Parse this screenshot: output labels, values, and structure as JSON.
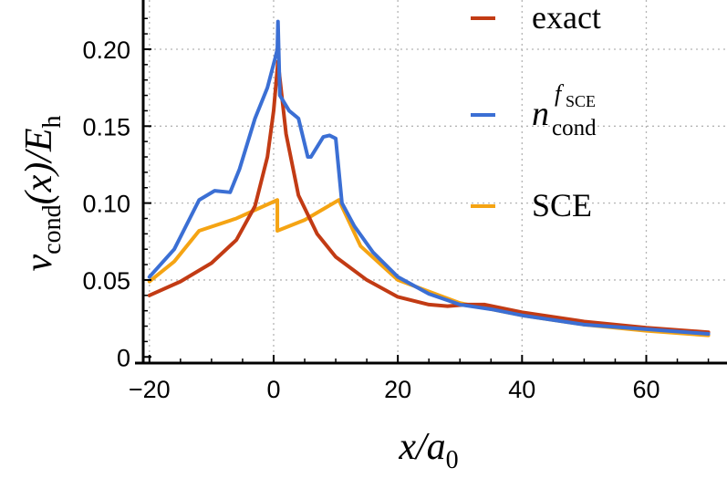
{
  "chart_data": {
    "type": "line",
    "xlabel": "x/a0",
    "ylabel": "v_cond(x)/E_h",
    "xlim": [
      -21,
      73
    ],
    "ylim": [
      -0.004,
      0.232
    ],
    "grid": true,
    "x_ticks": [
      -20,
      0,
      20,
      40,
      60
    ],
    "x_tick_labels": [
      "−20",
      "0",
      "20",
      "40",
      "60"
    ],
    "y_ticks": [
      0,
      0.05,
      0.1,
      0.15,
      0.2
    ],
    "y_tick_labels": [
      "0",
      "0.05",
      "0.10",
      "0.15",
      "0.20"
    ],
    "legend_position": "top-right",
    "series": [
      {
        "name": "exact",
        "color": "#c23b14",
        "x": [
          -20,
          -15,
          -10,
          -6,
          -3,
          -1,
          0,
          0.7,
          2,
          4,
          7,
          10,
          15,
          20,
          25,
          28,
          31,
          34,
          40,
          50,
          60,
          70
        ],
        "y": [
          0.04,
          0.049,
          0.061,
          0.076,
          0.098,
          0.13,
          0.16,
          0.192,
          0.145,
          0.105,
          0.08,
          0.065,
          0.05,
          0.039,
          0.034,
          0.033,
          0.034,
          0.034,
          0.029,
          0.023,
          0.019,
          0.016
        ]
      },
      {
        "name": "n_cond^{f_SCE}",
        "color": "#3b6fd4",
        "x": [
          -20,
          -16,
          -12,
          -9.5,
          -7,
          -5.5,
          -3,
          -1,
          0.3,
          0.6,
          0.7,
          1,
          2.5,
          4,
          5.5,
          6,
          8,
          9,
          10,
          11,
          13,
          16,
          20,
          25,
          30,
          35,
          40,
          50,
          60,
          70
        ],
        "y": [
          0.052,
          0.07,
          0.102,
          0.108,
          0.107,
          0.122,
          0.155,
          0.175,
          0.195,
          0.2,
          0.218,
          0.17,
          0.16,
          0.155,
          0.13,
          0.13,
          0.143,
          0.144,
          0.142,
          0.1,
          0.085,
          0.068,
          0.052,
          0.041,
          0.034,
          0.031,
          0.027,
          0.021,
          0.018,
          0.015
        ]
      },
      {
        "name": "SCE",
        "color": "#f5a413",
        "x": [
          -20,
          -16,
          -12,
          -6,
          0.6,
          0.6,
          5,
          10.5,
          14,
          20,
          30,
          40,
          50,
          60,
          70
        ],
        "y": [
          0.049,
          0.062,
          0.082,
          0.09,
          0.102,
          0.082,
          0.089,
          0.102,
          0.072,
          0.05,
          0.035,
          0.027,
          0.021,
          0.017,
          0.014
        ]
      }
    ]
  },
  "legend": {
    "items": [
      {
        "label": "exact"
      },
      {
        "label": "n",
        "sub": "cond",
        "sup": "f",
        "supsub": "SCE"
      },
      {
        "label": "SCE"
      }
    ]
  },
  "axis_labels": {
    "y_main": "v",
    "y_sub": "cond",
    "y_paren": "(x)/E",
    "y_paren_sub": "h",
    "x_main": "x/a",
    "x_sub": "0"
  }
}
